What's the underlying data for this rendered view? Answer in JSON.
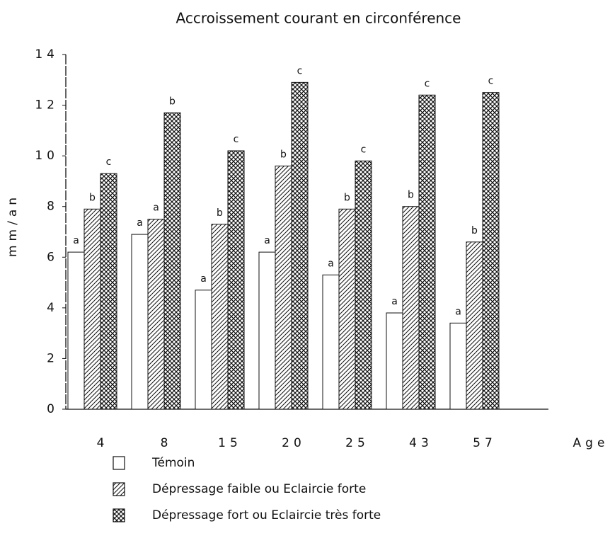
{
  "chart_data": {
    "type": "bar",
    "title": "Accroissement courant en circonférence",
    "y_label": "mm/an",
    "x_label": "Age",
    "categories": [
      "4",
      "8",
      "15",
      "20",
      "25",
      "43",
      "57"
    ],
    "series": [
      {
        "name": "Témoin",
        "color": "#ffffff",
        "pattern": "none",
        "values": [
          6.2,
          6.9,
          4.7,
          6.2,
          5.3,
          3.8,
          3.4
        ],
        "letters": [
          "a",
          "a",
          "a",
          "a",
          "a",
          "a",
          "a"
        ]
      },
      {
        "name": "Dépressage faible ou Eclaircie forte",
        "color": "#ffffff",
        "pattern": "hatch",
        "values": [
          7.9,
          7.5,
          7.3,
          9.6,
          7.9,
          8.0,
          6.6
        ],
        "letters": [
          "b",
          "a",
          "b",
          "b",
          "b",
          "b",
          "b"
        ]
      },
      {
        "name": "Dépressage fort ou Eclaircie très forte",
        "color": "#ffffff",
        "pattern": "cross",
        "values": [
          9.3,
          11.7,
          10.2,
          12.9,
          9.8,
          12.4,
          12.5
        ],
        "letters": [
          "c",
          "b",
          "c",
          "c",
          "c",
          "c",
          "c"
        ]
      }
    ],
    "ylim": [
      0,
      14
    ],
    "yticks": [
      0,
      2,
      4,
      6,
      8,
      10,
      12,
      14
    ],
    "grid": false
  }
}
